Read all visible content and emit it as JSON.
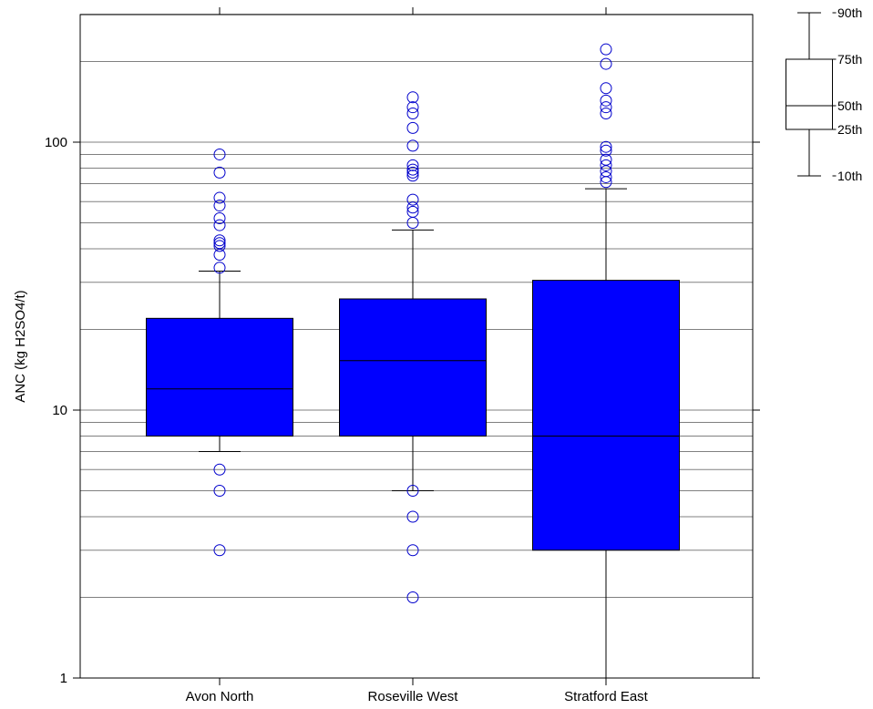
{
  "chart_data": {
    "type": "box",
    "title": "",
    "xlabel": "",
    "ylabel": "ANC (kg H2SO4/t)",
    "yscale": "log",
    "ylim": [
      1,
      300
    ],
    "yticks": [
      1,
      10,
      100
    ],
    "ytick_labels": [
      "1",
      "10",
      "100"
    ],
    "grid": "horizontal",
    "box_color": "#0000ff",
    "outlier_color": "#0000cc",
    "categories": [
      "Avon North",
      "Roseville West",
      "Stratford East"
    ],
    "boxes": [
      {
        "category": "Avon North",
        "p10": 7,
        "p25": 8,
        "p50": 12,
        "p75": 22,
        "p90": 33,
        "outliers": [
          90,
          77,
          62,
          58,
          52,
          49,
          43,
          42,
          41,
          38,
          34,
          6,
          5,
          3
        ]
      },
      {
        "category": "Roseville West",
        "p10": 5,
        "p25": 8,
        "p50": 15.3,
        "p75": 26,
        "p90": 47,
        "outliers": [
          147,
          135,
          128,
          113,
          97,
          82,
          79,
          77,
          75,
          61,
          57,
          55,
          50,
          5,
          4,
          3,
          2
        ]
      },
      {
        "category": "Stratford East",
        "p10": 1,
        "p25": 3,
        "p50": 8,
        "p75": 30.5,
        "p90": 67,
        "outliers": [
          222,
          196,
          159,
          143,
          135,
          128,
          96,
          93,
          86,
          82,
          78,
          74,
          71
        ]
      }
    ],
    "legend": {
      "placement": "top-right",
      "labels": [
        "90th",
        "75th",
        "50th",
        "25th",
        "10th"
      ]
    }
  }
}
